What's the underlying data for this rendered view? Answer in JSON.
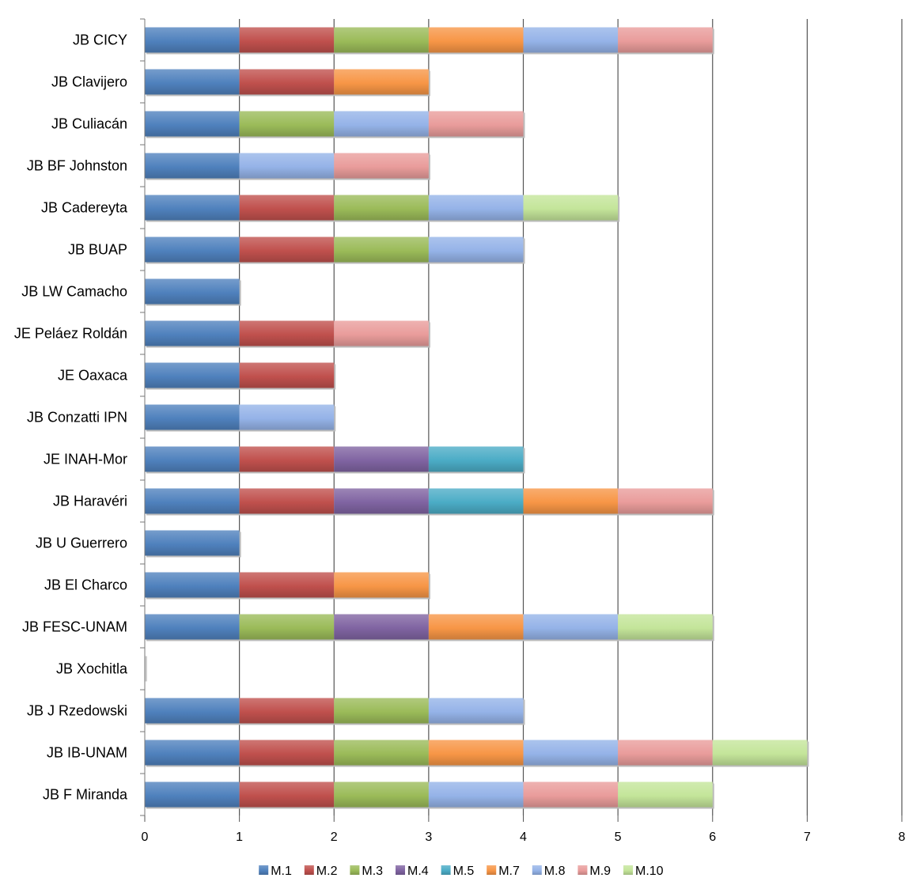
{
  "chart_data": {
    "type": "bar",
    "orientation": "horizontal",
    "stacked": true,
    "title": "",
    "xlabel": "",
    "ylabel": "",
    "xlim": [
      0,
      8
    ],
    "xticks": [
      0,
      1,
      2,
      3,
      4,
      5,
      6,
      7,
      8
    ],
    "grid": "vertical",
    "legend_position": "bottom",
    "categories": [
      "JB CICY",
      "JB Clavijero",
      "JB Culiacán",
      "JB BF Johnston",
      "JB Cadereyta",
      "JB BUAP",
      "JB LW Camacho",
      "JE Peláez Roldán",
      "JE Oaxaca",
      "JB Conzatti IPN",
      "JE INAH-Mor",
      "JB Haravéri",
      "JB U Guerrero",
      "JB El Charco",
      "JB FESC-UNAM",
      "JB Xochitla",
      "JB J Rzedowski ",
      "JB IB-UNAM",
      "JB F Miranda"
    ],
    "series": [
      {
        "name": "M.1",
        "color": "#4f81bd",
        "values": [
          1,
          1,
          1,
          1,
          1,
          1,
          1,
          1,
          1,
          1,
          1,
          1,
          1,
          1,
          1,
          0,
          1,
          1,
          1
        ]
      },
      {
        "name": "M.2",
        "color": "#c0504d",
        "values": [
          1,
          1,
          0,
          0,
          1,
          1,
          0,
          1,
          1,
          0,
          1,
          1,
          0,
          1,
          0,
          0,
          1,
          1,
          1
        ]
      },
      {
        "name": "M.3",
        "color": "#9bbb59",
        "values": [
          1,
          0,
          1,
          0,
          1,
          1,
          0,
          0,
          0,
          0,
          0,
          0,
          0,
          0,
          1,
          0,
          1,
          1,
          1
        ]
      },
      {
        "name": "M.4",
        "color": "#8064a2",
        "values": [
          0,
          0,
          0,
          0,
          0,
          0,
          0,
          0,
          0,
          0,
          1,
          1,
          0,
          0,
          1,
          0,
          0,
          0,
          0
        ]
      },
      {
        "name": "M.5",
        "color": "#4bacc6",
        "values": [
          0,
          0,
          0,
          0,
          0,
          0,
          0,
          0,
          0,
          0,
          1,
          1,
          0,
          0,
          0,
          0,
          0,
          0,
          0
        ]
      },
      {
        "name": "M.7",
        "color": "#f79646",
        "values": [
          1,
          1,
          0,
          0,
          0,
          0,
          0,
          0,
          0,
          0,
          0,
          1,
          0,
          1,
          1,
          0,
          0,
          1,
          0
        ]
      },
      {
        "name": "M.8",
        "color": "#95b3e8",
        "values": [
          1,
          0,
          1,
          1,
          1,
          1,
          0,
          0,
          0,
          1,
          0,
          0,
          0,
          0,
          1,
          0,
          1,
          1,
          1
        ]
      },
      {
        "name": "M.9",
        "color": "#e99c9b",
        "values": [
          1,
          0,
          1,
          1,
          0,
          0,
          0,
          1,
          0,
          0,
          0,
          1,
          0,
          0,
          0,
          0,
          0,
          1,
          1
        ]
      },
      {
        "name": "M.10",
        "color": "#c4e59a",
        "values": [
          0,
          0,
          0,
          0,
          1,
          0,
          0,
          0,
          0,
          0,
          0,
          0,
          0,
          0,
          1,
          0,
          0,
          1,
          1
        ]
      }
    ]
  }
}
